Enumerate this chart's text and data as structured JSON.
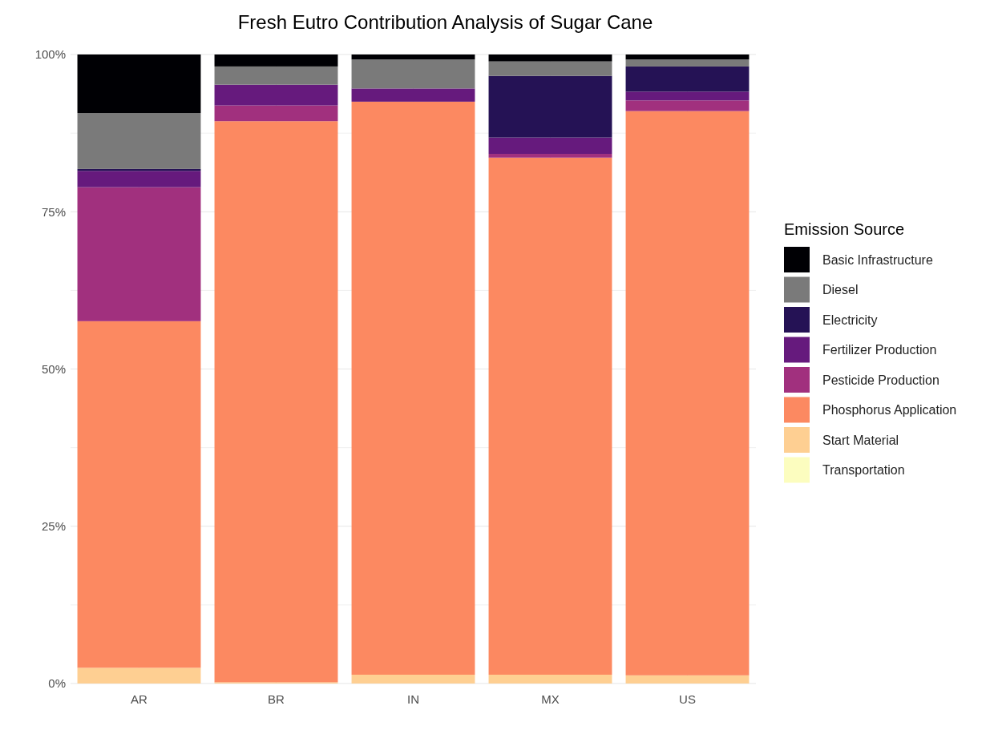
{
  "chart_data": {
    "type": "bar",
    "title": "Fresh Eutro Contribution Analysis of Sugar Cane",
    "legend_title": "Emission Source",
    "categories": [
      "AR",
      "BR",
      "IN",
      "MX",
      "US"
    ],
    "stacked": true,
    "grid": true,
    "legend": "right",
    "ylim": [
      0,
      100
    ],
    "yticks": [
      {
        "value": 0,
        "label": "0%"
      },
      {
        "value": 25,
        "label": "25%"
      },
      {
        "value": 50,
        "label": "50%"
      },
      {
        "value": 75,
        "label": "75%"
      },
      {
        "value": 100,
        "label": "100%"
      }
    ],
    "series": [
      {
        "name": "Transportation",
        "color": "#fcfdbf",
        "values": [
          0,
          0,
          0,
          0,
          0
        ]
      },
      {
        "name": "Start Material",
        "color": "#fecf92",
        "values": [
          2.5,
          0.2,
          1.4,
          1.4,
          1.3
        ]
      },
      {
        "name": "Phosphorus Application",
        "color": "#fc8961",
        "values": [
          55.1,
          89.2,
          91.1,
          82.2,
          89.7
        ]
      },
      {
        "name": "Pesticide Production",
        "color": "#a1307e",
        "values": [
          21.3,
          2.5,
          0,
          0.6,
          1.7
        ]
      },
      {
        "name": "Fertilizer Production",
        "color": "#661a7d",
        "values": [
          2.6,
          3.3,
          2.1,
          2.6,
          1.4
        ]
      },
      {
        "name": "Electricity",
        "color": "#251255",
        "values": [
          0.3,
          0,
          0,
          9.8,
          4.0
        ]
      },
      {
        "name": "Diesel",
        "color": "#7a7a7a",
        "values": [
          8.9,
          2.9,
          4.6,
          2.3,
          1.1
        ]
      },
      {
        "name": "Basic Infrastructure",
        "color": "#000004",
        "values": [
          9.3,
          1.9,
          0.8,
          1.1,
          0.8
        ]
      }
    ]
  }
}
